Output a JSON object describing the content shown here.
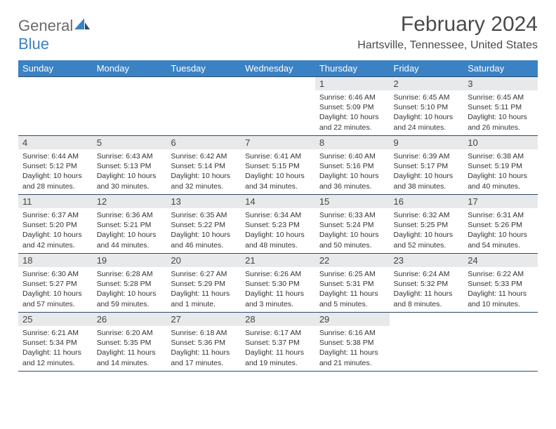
{
  "brand": {
    "part1": "General",
    "part2": "Blue"
  },
  "title": "February 2024",
  "location": "Hartsville, Tennessee, United States",
  "colors": {
    "header_bg": "#3b82c4",
    "header_text": "#ffffff",
    "border": "#2a4a6a",
    "daynum_bg": "#e8e9ea",
    "text": "#333333",
    "logo_gray": "#6a6a6a",
    "logo_blue": "#3b82c4",
    "page_bg": "#ffffff"
  },
  "typography": {
    "title_fontsize": 30,
    "location_fontsize": 16,
    "dow_fontsize": 13,
    "daynum_fontsize": 13,
    "body_fontsize": 10.5
  },
  "dow": [
    "Sunday",
    "Monday",
    "Tuesday",
    "Wednesday",
    "Thursday",
    "Friday",
    "Saturday"
  ],
  "weeks": [
    [
      {
        "empty": true
      },
      {
        "empty": true
      },
      {
        "empty": true
      },
      {
        "empty": true
      },
      {
        "n": "1",
        "sr": "Sunrise: 6:46 AM",
        "ss": "Sunset: 5:09 PM",
        "dl": "Daylight: 10 hours and 22 minutes."
      },
      {
        "n": "2",
        "sr": "Sunrise: 6:45 AM",
        "ss": "Sunset: 5:10 PM",
        "dl": "Daylight: 10 hours and 24 minutes."
      },
      {
        "n": "3",
        "sr": "Sunrise: 6:45 AM",
        "ss": "Sunset: 5:11 PM",
        "dl": "Daylight: 10 hours and 26 minutes."
      }
    ],
    [
      {
        "n": "4",
        "sr": "Sunrise: 6:44 AM",
        "ss": "Sunset: 5:12 PM",
        "dl": "Daylight: 10 hours and 28 minutes."
      },
      {
        "n": "5",
        "sr": "Sunrise: 6:43 AM",
        "ss": "Sunset: 5:13 PM",
        "dl": "Daylight: 10 hours and 30 minutes."
      },
      {
        "n": "6",
        "sr": "Sunrise: 6:42 AM",
        "ss": "Sunset: 5:14 PM",
        "dl": "Daylight: 10 hours and 32 minutes."
      },
      {
        "n": "7",
        "sr": "Sunrise: 6:41 AM",
        "ss": "Sunset: 5:15 PM",
        "dl": "Daylight: 10 hours and 34 minutes."
      },
      {
        "n": "8",
        "sr": "Sunrise: 6:40 AM",
        "ss": "Sunset: 5:16 PM",
        "dl": "Daylight: 10 hours and 36 minutes."
      },
      {
        "n": "9",
        "sr": "Sunrise: 6:39 AM",
        "ss": "Sunset: 5:17 PM",
        "dl": "Daylight: 10 hours and 38 minutes."
      },
      {
        "n": "10",
        "sr": "Sunrise: 6:38 AM",
        "ss": "Sunset: 5:19 PM",
        "dl": "Daylight: 10 hours and 40 minutes."
      }
    ],
    [
      {
        "n": "11",
        "sr": "Sunrise: 6:37 AM",
        "ss": "Sunset: 5:20 PM",
        "dl": "Daylight: 10 hours and 42 minutes."
      },
      {
        "n": "12",
        "sr": "Sunrise: 6:36 AM",
        "ss": "Sunset: 5:21 PM",
        "dl": "Daylight: 10 hours and 44 minutes."
      },
      {
        "n": "13",
        "sr": "Sunrise: 6:35 AM",
        "ss": "Sunset: 5:22 PM",
        "dl": "Daylight: 10 hours and 46 minutes."
      },
      {
        "n": "14",
        "sr": "Sunrise: 6:34 AM",
        "ss": "Sunset: 5:23 PM",
        "dl": "Daylight: 10 hours and 48 minutes."
      },
      {
        "n": "15",
        "sr": "Sunrise: 6:33 AM",
        "ss": "Sunset: 5:24 PM",
        "dl": "Daylight: 10 hours and 50 minutes."
      },
      {
        "n": "16",
        "sr": "Sunrise: 6:32 AM",
        "ss": "Sunset: 5:25 PM",
        "dl": "Daylight: 10 hours and 52 minutes."
      },
      {
        "n": "17",
        "sr": "Sunrise: 6:31 AM",
        "ss": "Sunset: 5:26 PM",
        "dl": "Daylight: 10 hours and 54 minutes."
      }
    ],
    [
      {
        "n": "18",
        "sr": "Sunrise: 6:30 AM",
        "ss": "Sunset: 5:27 PM",
        "dl": "Daylight: 10 hours and 57 minutes."
      },
      {
        "n": "19",
        "sr": "Sunrise: 6:28 AM",
        "ss": "Sunset: 5:28 PM",
        "dl": "Daylight: 10 hours and 59 minutes."
      },
      {
        "n": "20",
        "sr": "Sunrise: 6:27 AM",
        "ss": "Sunset: 5:29 PM",
        "dl": "Daylight: 11 hours and 1 minute."
      },
      {
        "n": "21",
        "sr": "Sunrise: 6:26 AM",
        "ss": "Sunset: 5:30 PM",
        "dl": "Daylight: 11 hours and 3 minutes."
      },
      {
        "n": "22",
        "sr": "Sunrise: 6:25 AM",
        "ss": "Sunset: 5:31 PM",
        "dl": "Daylight: 11 hours and 5 minutes."
      },
      {
        "n": "23",
        "sr": "Sunrise: 6:24 AM",
        "ss": "Sunset: 5:32 PM",
        "dl": "Daylight: 11 hours and 8 minutes."
      },
      {
        "n": "24",
        "sr": "Sunrise: 6:22 AM",
        "ss": "Sunset: 5:33 PM",
        "dl": "Daylight: 11 hours and 10 minutes."
      }
    ],
    [
      {
        "n": "25",
        "sr": "Sunrise: 6:21 AM",
        "ss": "Sunset: 5:34 PM",
        "dl": "Daylight: 11 hours and 12 minutes."
      },
      {
        "n": "26",
        "sr": "Sunrise: 6:20 AM",
        "ss": "Sunset: 5:35 PM",
        "dl": "Daylight: 11 hours and 14 minutes."
      },
      {
        "n": "27",
        "sr": "Sunrise: 6:18 AM",
        "ss": "Sunset: 5:36 PM",
        "dl": "Daylight: 11 hours and 17 minutes."
      },
      {
        "n": "28",
        "sr": "Sunrise: 6:17 AM",
        "ss": "Sunset: 5:37 PM",
        "dl": "Daylight: 11 hours and 19 minutes."
      },
      {
        "n": "29",
        "sr": "Sunrise: 6:16 AM",
        "ss": "Sunset: 5:38 PM",
        "dl": "Daylight: 11 hours and 21 minutes."
      },
      {
        "empty": true
      },
      {
        "empty": true
      }
    ]
  ]
}
